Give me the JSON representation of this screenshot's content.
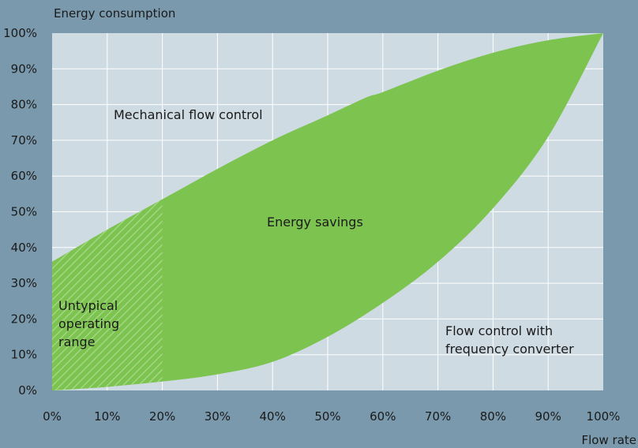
{
  "colors": {
    "background": "#7a99ac",
    "plot_area": "#cfdbe2",
    "grid": "#ffffff",
    "savings_fill": "#7dc350",
    "hatch": "#a9d98a",
    "text": "#1a1a1a"
  },
  "chart_data": {
    "type": "area",
    "title": "",
    "ylabel": "Energy consumption",
    "xlabel": "Flow rate",
    "xlim": [
      0,
      100
    ],
    "ylim": [
      0,
      100
    ],
    "grid": true,
    "x_ticks": [
      "0%",
      "10%",
      "20%",
      "30%",
      "40%",
      "50%",
      "60%",
      "70%",
      "80%",
      "90%",
      "100%"
    ],
    "y_ticks": [
      "0%",
      "10%",
      "20%",
      "30%",
      "40%",
      "50%",
      "60%",
      "70%",
      "80%",
      "90%",
      "100%"
    ],
    "series": [
      {
        "name": "Mechanical flow control",
        "x": [
          0,
          10,
          20,
          30,
          40,
          50,
          57,
          60,
          70,
          80,
          90,
          100
        ],
        "y": [
          36,
          45,
          53.5,
          62,
          70,
          77,
          82,
          83.5,
          89.5,
          94.5,
          98,
          100
        ]
      },
      {
        "name": "Flow control with frequency converter",
        "x": [
          0,
          10,
          20,
          30,
          40,
          50,
          60,
          70,
          80,
          90,
          100
        ],
        "y": [
          0,
          1,
          2.5,
          4.5,
          8,
          15,
          24.5,
          36,
          51,
          71,
          100
        ]
      }
    ],
    "annotations": {
      "savings": "Energy savings",
      "untypical": [
        "Untypical",
        "operating",
        "range"
      ],
      "mechanical": "Mechanical flow control",
      "converter": [
        "Flow control with",
        "frequency converter"
      ]
    },
    "untypical_range_max": 20
  }
}
